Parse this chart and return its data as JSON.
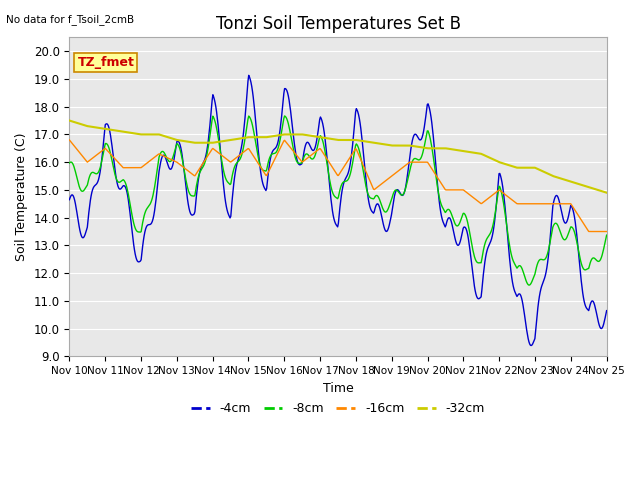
{
  "title": "Tonzi Soil Temperatures Set B",
  "no_data_label": "No data for f_Tsoil_2cmB",
  "annotation_label": "TZ_fmet",
  "xlabel": "Time",
  "ylabel": "Soil Temperature (C)",
  "ylim": [
    9.0,
    20.5
  ],
  "yticks": [
    9.0,
    10.0,
    11.0,
    12.0,
    13.0,
    14.0,
    15.0,
    16.0,
    17.0,
    18.0,
    19.0,
    20.0
  ],
  "xtick_labels": [
    "Nov 10",
    "Nov 11",
    "Nov 12",
    "Nov 13",
    "Nov 14",
    "Nov 15",
    "Nov 16",
    "Nov 17",
    "Nov 18",
    "Nov 19",
    "Nov 20",
    "Nov 21",
    "Nov 22",
    "Nov 23",
    "Nov 24",
    "Nov 25"
  ],
  "colors": {
    "-4cm": "#0000cc",
    "-8cm": "#00cc00",
    "-16cm": "#ff8800",
    "-32cm": "#cccc00"
  },
  "legend_labels": [
    "-4cm",
    "-8cm",
    "-16cm",
    "-32cm"
  ],
  "plot_bg_color": "#e8e8e8",
  "grid_color": "#ffffff",
  "annotation_bg": "#ffff99",
  "annotation_fg": "#cc0000",
  "figsize": [
    6.4,
    4.8
  ],
  "dpi": 100
}
